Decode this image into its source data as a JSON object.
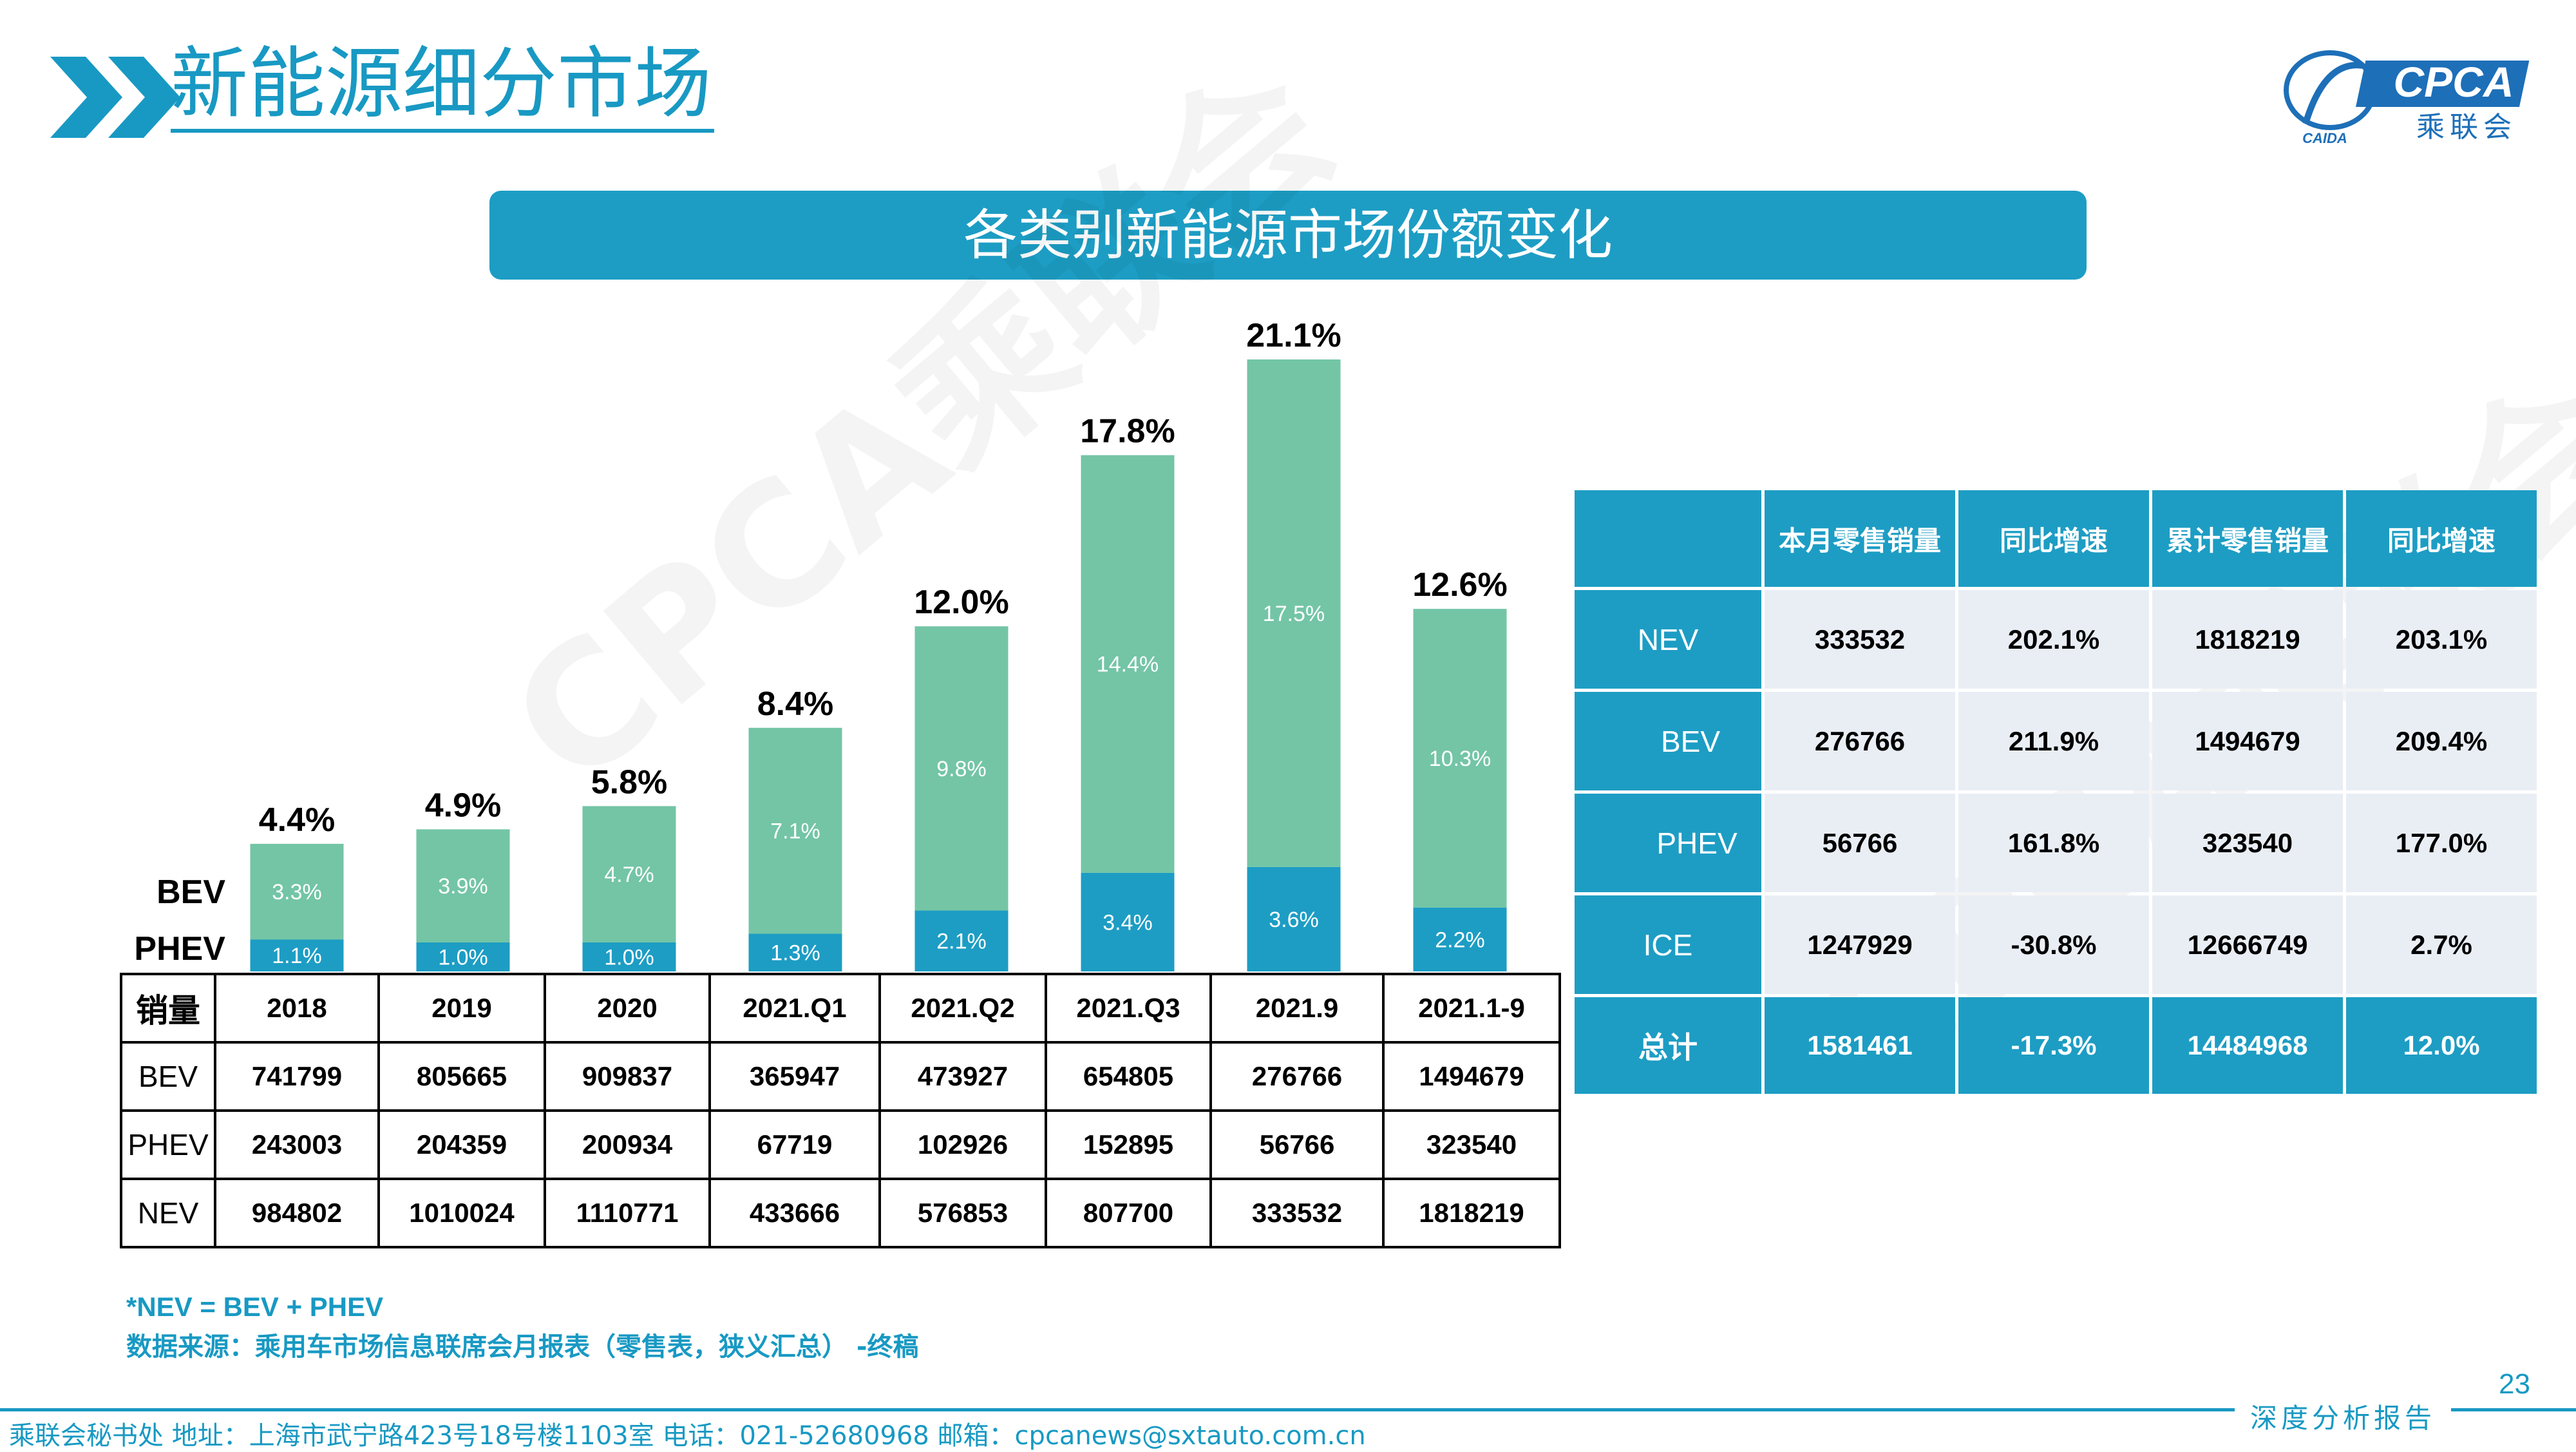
{
  "header": {
    "title": "新能源细分市场",
    "logo": {
      "brand": "CPCA",
      "cn": "乘联会",
      "sub": "CAIDA"
    }
  },
  "banner": {
    "title": "各类别新能源市场份额变化"
  },
  "watermark": "CPCA乘联会",
  "chart_data": {
    "type": "bar",
    "stacked": true,
    "categories": [
      "2018",
      "2019",
      "2020",
      "2021.Q1",
      "2021.Q2",
      "2021.Q3",
      "2021.9",
      "2021.1-9"
    ],
    "series": [
      {
        "name": "PHEV",
        "values": [
          1.1,
          1.0,
          1.0,
          1.3,
          2.1,
          3.4,
          3.6,
          2.2
        ],
        "labels": [
          "1.1%",
          "1.0%",
          "1.0%",
          "1.3%",
          "2.1%",
          "3.4%",
          "3.6%",
          "2.2%"
        ],
        "color": "#1d9dc4"
      },
      {
        "name": "BEV",
        "values": [
          3.3,
          3.9,
          4.7,
          7.1,
          9.8,
          14.4,
          17.5,
          10.3
        ],
        "labels": [
          "3.3%",
          "3.9%",
          "4.7%",
          "7.1%",
          "9.8%",
          "14.4%",
          "17.5%",
          "10.3%"
        ],
        "color": "#73c5a6"
      }
    ],
    "totals": [
      4.4,
      4.9,
      5.8,
      8.4,
      12.0,
      17.8,
      21.1,
      12.6
    ],
    "total_labels": [
      "4.4%",
      "4.9%",
      "5.8%",
      "8.4%",
      "12.0%",
      "17.8%",
      "21.1%",
      "12.6%"
    ],
    "ylim": [
      0,
      21.1
    ],
    "unit": "%",
    "grid": false
  },
  "sales_table": {
    "corner": "销量",
    "columns": [
      "2018",
      "2019",
      "2020",
      "2021.Q1",
      "2021.Q2",
      "2021.Q3",
      "2021.9",
      "2021.1-9"
    ],
    "rows": [
      {
        "label": "BEV",
        "values": [
          "741799",
          "805665",
          "909837",
          "365947",
          "473927",
          "654805",
          "276766",
          "1494679"
        ]
      },
      {
        "label": "PHEV",
        "values": [
          "243003",
          "204359",
          "200934",
          "67719",
          "102926",
          "152895",
          "56766",
          "323540"
        ]
      },
      {
        "label": "NEV",
        "values": [
          "984802",
          "1010024",
          "1110771",
          "433666",
          "576853",
          "807700",
          "333532",
          "1818219"
        ]
      }
    ]
  },
  "share_table": {
    "headers": [
      "本月零售销量",
      "同比增速",
      "累计零售销量",
      "同比增速"
    ],
    "rows": [
      {
        "label": "NEV",
        "values": [
          "333532",
          "202.1%",
          "1818219",
          "203.1%"
        ]
      },
      {
        "label": "BEV",
        "values": [
          "276766",
          "211.9%",
          "1494679",
          "209.4%"
        ]
      },
      {
        "label": "PHEV",
        "values": [
          "56766",
          "161.8%",
          "323540",
          "177.0%"
        ]
      },
      {
        "label": "ICE",
        "values": [
          "1247929",
          "-30.8%",
          "12666749",
          "2.7%"
        ]
      }
    ],
    "total": {
      "label": "总计",
      "values": [
        "1581461",
        "-17.3%",
        "14484968",
        "12.0%"
      ]
    }
  },
  "notes": {
    "formula": "*NEV = BEV + PHEV",
    "source": "数据来源：乘用车市场信息联席会月报表（零售表，狭义汇总） -终稿"
  },
  "footer": {
    "page_number": "23",
    "left_text": "乘联会秘书处   地址：上海市武宁路423号18号楼1103室   电话：021-52680968   邮箱：cpcanews@sxtauto.com.cn",
    "right_text": "深度分析报告"
  }
}
